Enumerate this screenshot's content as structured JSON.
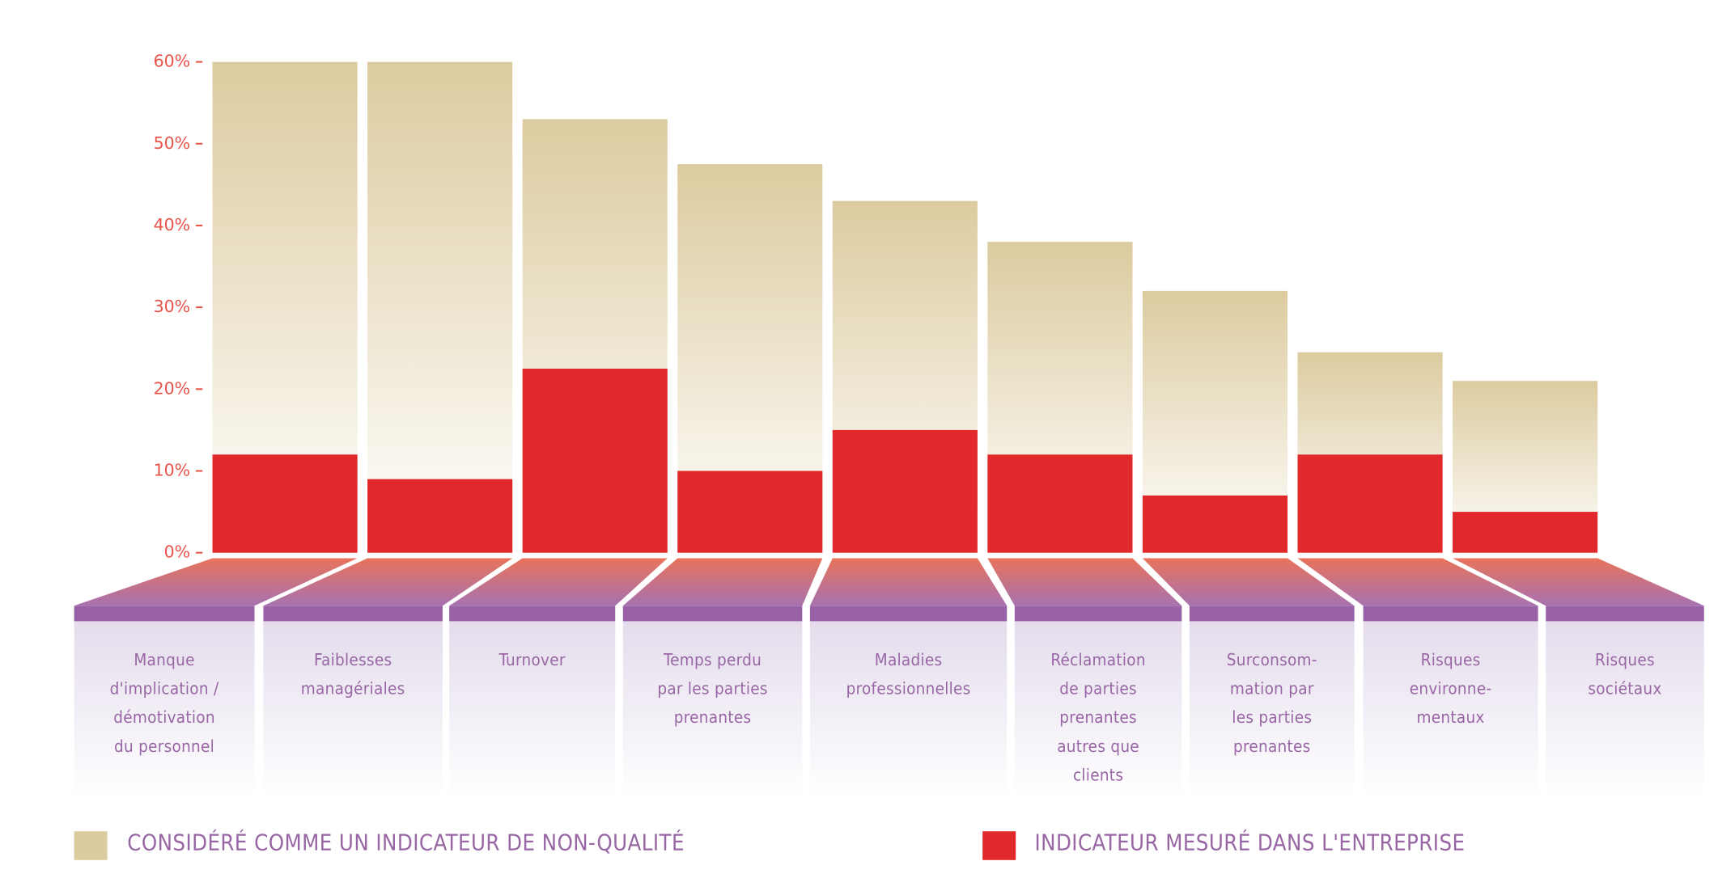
{
  "chart_data": {
    "type": "bar",
    "categories": [
      "Manque\nd'implication /\ndémotivation\ndu personnel",
      "Faiblesses\nmanagériales",
      "Turnover",
      "Temps perdu\npar les parties\nprenantes",
      "Maladies\nprofessionnelles",
      "Réclamation\nde parties\nprenantes\nautres que\nclients",
      "Surconsom-\nmation par\nles parties\nprenantes",
      "Risques\nenvironne-\nmentaux",
      "Risques\nsociétaux"
    ],
    "series": [
      {
        "name": "CONSIDÉRÉ COMME UN INDICATEUR DE NON-QUALITÉ",
        "color": "#dccb9f",
        "values": [
          60,
          60,
          53,
          47.5,
          43,
          38,
          32,
          24.5,
          21
        ]
      },
      {
        "name": "INDICATEUR MESURÉ DANS L'ENTREPRISE",
        "color": "#e1282a",
        "values": [
          12,
          9,
          22.5,
          10,
          15,
          12,
          7,
          12,
          5
        ]
      }
    ],
    "ylim": [
      0,
      60
    ],
    "yticks": [
      {
        "value": 0,
        "label": "0%"
      },
      {
        "value": 10,
        "label": "10%"
      },
      {
        "value": 20,
        "label": "20%"
      },
      {
        "value": 30,
        "label": "30%"
      },
      {
        "value": 40,
        "label": "40%"
      },
      {
        "value": 50,
        "label": "50%"
      },
      {
        "value": 60,
        "label": "60%"
      }
    ],
    "grid": false
  }
}
